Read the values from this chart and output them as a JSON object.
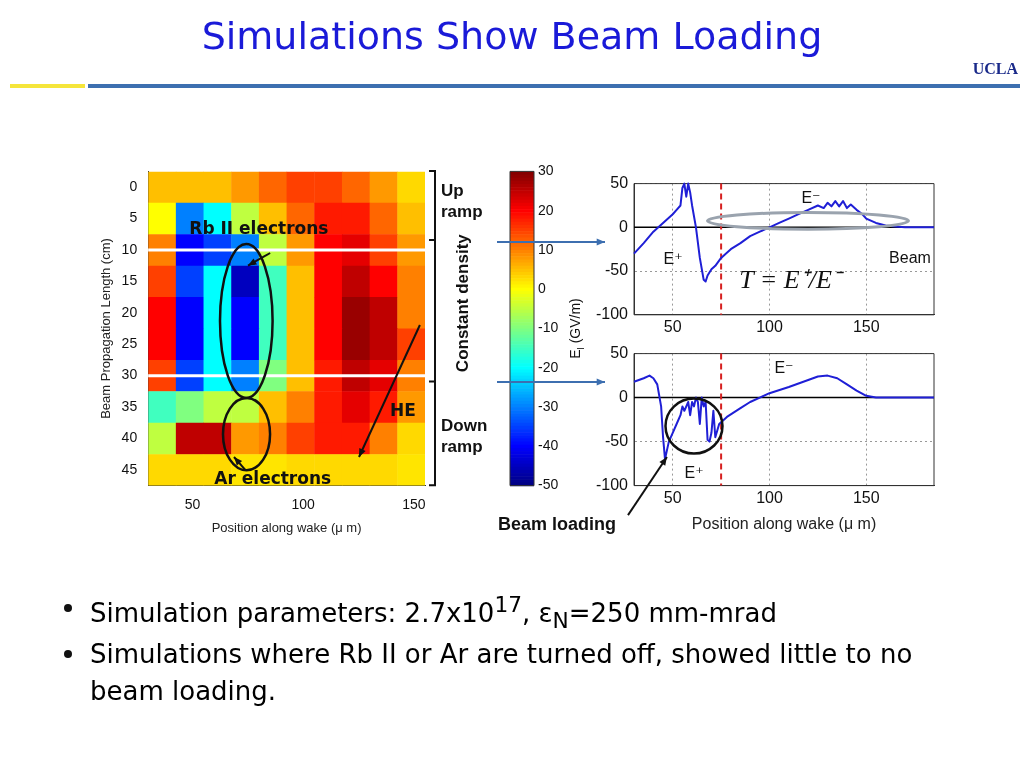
{
  "chart_data": [
    {
      "type": "heatmap",
      "title": "Simulations Show Beam Loading",
      "xlabel": "Position along wake (μ m)",
      "ylabel": "Beam Propagation Length (cm)",
      "clabel": "E$_{l}$ (GV/m)",
      "x": [
        36.25,
        48.75,
        61.25,
        73.75,
        86.25,
        98.75,
        111.25,
        123.75,
        136.25,
        148.75
      ],
      "y_categories": [
        "0",
        "5",
        "10",
        "15",
        "20",
        "25",
        "30",
        "35",
        "40",
        "45"
      ],
      "xlim": [
        30,
        155
      ],
      "xticks": [
        50,
        100,
        150
      ],
      "cells": [
        [
          5,
          5,
          5,
          8,
          12,
          15,
          15,
          12,
          8,
          3
        ],
        [
          0,
          -30,
          -20,
          -5,
          5,
          12,
          18,
          18,
          12,
          5
        ],
        [
          10,
          -40,
          -35,
          -30,
          -5,
          8,
          20,
          22,
          15,
          8
        ],
        [
          15,
          -35,
          -20,
          -45,
          -15,
          5,
          20,
          25,
          20,
          10
        ],
        [
          20,
          -40,
          -20,
          -40,
          -15,
          5,
          20,
          28,
          25,
          10
        ],
        [
          20,
          -40,
          -20,
          -40,
          -15,
          5,
          20,
          28,
          25,
          15
        ],
        [
          15,
          -35,
          -20,
          -30,
          -10,
          5,
          18,
          25,
          22,
          10
        ],
        [
          -15,
          -10,
          -5,
          -5,
          5,
          10,
          18,
          22,
          18,
          8
        ],
        [
          -5,
          25,
          25,
          8,
          10,
          15,
          18,
          18,
          10,
          3
        ],
        [
          3,
          3,
          3,
          2,
          2,
          3,
          3,
          3,
          3,
          2
        ]
      ],
      "clim": [
        -50,
        30
      ],
      "cticks": [
        -50,
        -40,
        -30,
        -20,
        -10,
        0,
        10,
        20,
        30
      ],
      "ref_lines": [
        {
          "axis": "y",
          "value": "10",
          "color": "#ffffff"
        },
        {
          "axis": "y",
          "value": "30",
          "color": "#ffffff"
        }
      ],
      "annotations": [
        "Rb II electrons",
        "Ar electrons",
        "HE",
        "Up ramp",
        "Constant density",
        "Down ramp",
        "UCLA"
      ]
    },
    {
      "type": "line",
      "x": [
        30,
        35,
        40,
        45,
        50,
        52,
        54,
        55,
        56,
        57,
        58,
        59,
        60,
        62,
        64,
        66,
        67,
        68,
        70,
        72,
        75,
        80,
        85,
        90,
        95,
        100,
        105,
        110,
        115,
        120,
        125,
        128,
        130,
        132,
        134,
        136,
        138,
        140,
        142,
        145,
        148,
        150,
        155,
        160,
        165,
        170,
        180,
        185
      ],
      "series": [
        {
          "color": "#1f1fd6",
          "values": [
            -30,
            -18,
            -5,
            5,
            15,
            20,
            25,
            45,
            50,
            35,
            50,
            40,
            25,
            0,
            -35,
            -60,
            -62,
            -55,
            -48,
            -44,
            -35,
            -25,
            -18,
            -10,
            -5,
            0,
            5,
            10,
            15,
            20,
            25,
            22,
            28,
            24,
            30,
            24,
            30,
            22,
            26,
            20,
            15,
            10,
            5,
            2,
            1,
            0,
            0,
            0
          ]
        }
      ],
      "xlim": [
        30,
        185
      ],
      "xticks": [
        50,
        100,
        150
      ],
      "ylim": [
        -100,
        50
      ],
      "yticks": [
        -100,
        -50,
        0,
        50
      ],
      "grid": true,
      "marker": "none",
      "line_style": "solid",
      "ref_lines": [
        {
          "axis": "y",
          "value": 0,
          "color": "#000000",
          "line_style": "solid"
        },
        {
          "axis": "x",
          "value": 75,
          "color": "#d62020",
          "line_style": "dashed"
        }
      ],
      "annotations": [
        "E⁻",
        "E⁺",
        "Beam",
        "T = E⁺/E⁻"
      ]
    },
    {
      "type": "line",
      "xlabel": "Position along wake (μ m)",
      "x": [
        30,
        35,
        38,
        40,
        42,
        44,
        45,
        46,
        47,
        48,
        50,
        52,
        54,
        55,
        56,
        58,
        59,
        60,
        61,
        62,
        63,
        64,
        65,
        66,
        67,
        68,
        69,
        70,
        71,
        72,
        74,
        78,
        85,
        90,
        95,
        100,
        110,
        120,
        125,
        130,
        135,
        140,
        145,
        150,
        155,
        160,
        170,
        185
      ],
      "series": [
        {
          "color": "#1f1fd6",
          "values": [
            18,
            22,
            25,
            22,
            15,
            -10,
            -45,
            -70,
            -60,
            -50,
            -40,
            -30,
            -20,
            -10,
            -15,
            -5,
            -20,
            -5,
            -10,
            0,
            -5,
            -30,
            0,
            -10,
            -5,
            -48,
            -50,
            -40,
            -15,
            -45,
            -30,
            -22,
            -12,
            -5,
            0,
            5,
            12,
            20,
            24,
            25,
            22,
            15,
            8,
            2,
            0,
            0,
            0,
            0
          ]
        }
      ],
      "xlim": [
        30,
        185
      ],
      "xticks": [
        50,
        100,
        150
      ],
      "ylim": [
        -100,
        50
      ],
      "yticks": [
        -100,
        -50,
        0,
        50
      ],
      "grid": true,
      "marker": "none",
      "line_style": "solid",
      "ref_lines": [
        {
          "axis": "y",
          "value": 0,
          "color": "#000000",
          "line_style": "solid"
        },
        {
          "axis": "x",
          "value": 75,
          "color": "#d62020",
          "line_style": "dashed"
        }
      ],
      "annotations": [
        "E⁻",
        "E⁺",
        {
          "text": "Beam loading",
          "x": 47,
          "y": -68
        },
        "Simulation parameters: 2.7x10$^{17}$, ε$_{N}$=250 mm-mrad",
        "Simulations where Rb II or Ar are turned off, showed little to no beam loading."
      ]
    }
  ]
}
